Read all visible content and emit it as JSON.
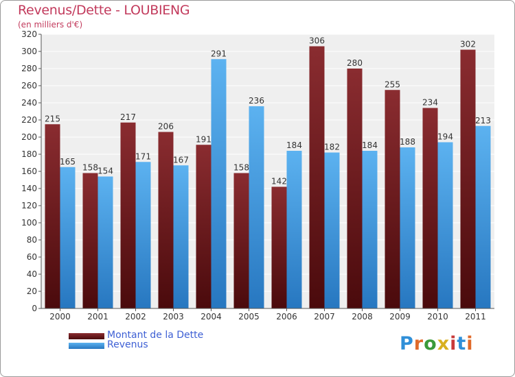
{
  "title": "Revenus/Dette - LOUBIENG",
  "subtitle": "(en milliers d'€)",
  "chart_data": {
    "type": "bar",
    "categories": [
      "2000",
      "2001",
      "2002",
      "2003",
      "2004",
      "2005",
      "2006",
      "2007",
      "2008",
      "2009",
      "2010",
      "2011"
    ],
    "series": [
      {
        "name": "Montant de la Dette",
        "values": [
          215,
          158,
          217,
          206,
          191,
          158,
          142,
          306,
          280,
          255,
          234,
          302
        ],
        "color": "#7a1f22"
      },
      {
        "name": "Revenus",
        "values": [
          165,
          154,
          171,
          167,
          291,
          236,
          184,
          182,
          184,
          188,
          194,
          213
        ],
        "color": "#4ca3e6"
      }
    ],
    "ylim": [
      0,
      320
    ],
    "yticks": [
      0,
      20,
      40,
      60,
      80,
      100,
      120,
      140,
      160,
      180,
      200,
      220,
      240,
      260,
      280,
      300,
      320
    ],
    "grid": true,
    "legend": "bottom-left"
  },
  "logo": {
    "text": "Proxiti"
  }
}
